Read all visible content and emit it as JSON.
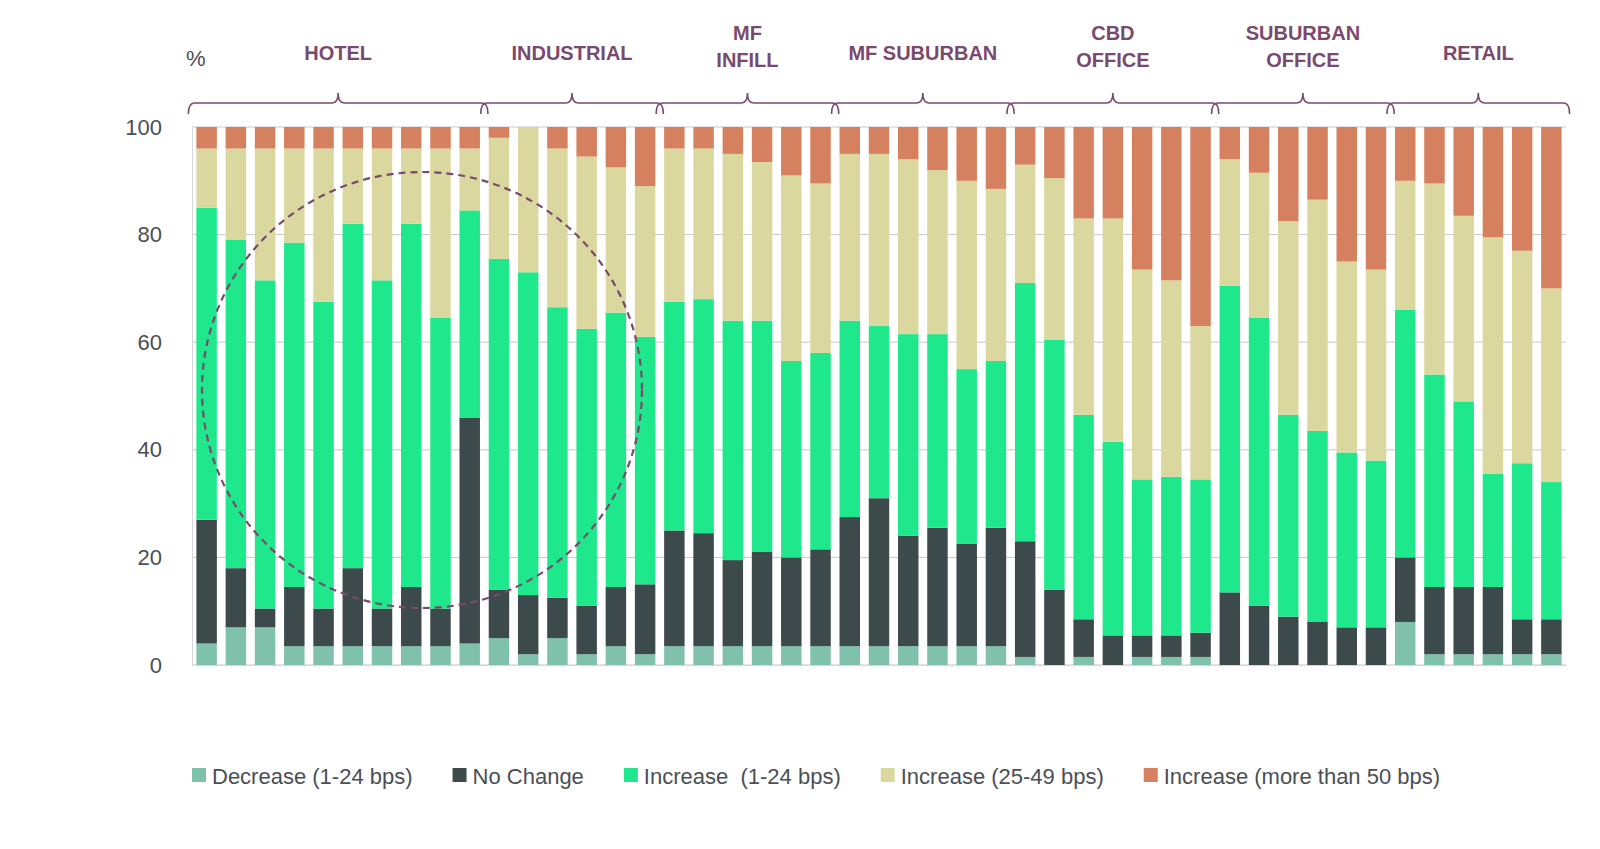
{
  "chart_data": {
    "type": "bar",
    "stacked": true,
    "grid": true,
    "legend": "bottom",
    "y_label": "%",
    "ylim": [
      0,
      100
    ],
    "yticks": [
      0,
      20,
      40,
      60,
      80,
      100
    ],
    "groups": [
      {
        "name": "HOTEL",
        "count": 10
      },
      {
        "name": "INDUSTRIAL",
        "count": 6
      },
      {
        "name": "MF\nINFILL",
        "count": 6
      },
      {
        "name": "MF SUBURBAN",
        "count": 6
      },
      {
        "name": "CBD\nOFFICE",
        "count": 7
      },
      {
        "name": "SUBURBAN\nOFFICE",
        "count": 6
      },
      {
        "name": "RETAIL",
        "count": 6
      }
    ],
    "categories": [
      null,
      null,
      null,
      null,
      null,
      null,
      null,
      null,
      null,
      null,
      null,
      null,
      null,
      null,
      null,
      null,
      null,
      null,
      null,
      null,
      null,
      null,
      null,
      null,
      null,
      null,
      null,
      null,
      null,
      null,
      null,
      null,
      null,
      null,
      null,
      null,
      null,
      null,
      null,
      null,
      null,
      null,
      null,
      null,
      null,
      null,
      null
    ],
    "series": [
      {
        "name": "Decrease (1-24 bps)",
        "color": "#80c1ac",
        "values": [
          4,
          7,
          7,
          3.5,
          3.5,
          3.5,
          3.5,
          3.5,
          3.5,
          4,
          5,
          2,
          5,
          2,
          3.5,
          2,
          3.5,
          3.5,
          3.5,
          3.5,
          3.5,
          3.5,
          3.5,
          3.5,
          3.5,
          3.5,
          3.5,
          3.5,
          1.5,
          0,
          1.5,
          0,
          1.5,
          1.5,
          1.5,
          0,
          0,
          0,
          0,
          0,
          0,
          8,
          2,
          2,
          2,
          2,
          2
        ]
      },
      {
        "name": "No Change",
        "color": "#3c4a4b",
        "values": [
          23,
          11,
          3.5,
          11,
          7,
          14.5,
          7,
          11,
          7,
          42,
          9,
          11,
          7.5,
          9,
          11,
          13,
          21.5,
          21,
          16,
          17.5,
          16.5,
          18,
          24,
          27.5,
          20.5,
          22,
          19,
          22,
          21.5,
          14,
          7,
          5.5,
          4,
          4,
          4.5,
          13.5,
          11,
          9,
          8,
          7,
          7,
          12,
          12.5,
          12.5,
          12.5,
          6.5,
          6.5
        ]
      },
      {
        "name": "Increase  (1-24 bps)",
        "color": "#1ee88b",
        "values": [
          58,
          61,
          61,
          64,
          57,
          64,
          61,
          67.5,
          54,
          38.5,
          61.5,
          60,
          54,
          51.5,
          51,
          46,
          42.5,
          43.5,
          44.5,
          43,
          36.5,
          36.5,
          36.5,
          32,
          37.5,
          36,
          32.5,
          31,
          48,
          46.5,
          38,
          36,
          29,
          29.5,
          28.5,
          57,
          53.5,
          37.5,
          35.5,
          32.5,
          31,
          46,
          39.5,
          34.5,
          21,
          29,
          25.5
        ]
      },
      {
        "name": "Increase (25-49 bps)",
        "color": "#dad89f",
        "values": [
          11,
          17,
          24.5,
          17.5,
          28.5,
          14,
          24.5,
          14,
          31.5,
          11.5,
          22.5,
          27,
          29.5,
          32,
          27,
          28,
          28.5,
          28,
          31,
          29.5,
          34.5,
          31.5,
          31,
          32,
          32.5,
          30.5,
          35,
          32,
          22,
          30,
          36.5,
          41.5,
          39,
          36.5,
          28.5,
          23.5,
          27,
          36,
          43,
          35.5,
          35.5,
          24,
          35.5,
          34.5,
          44,
          39.5,
          36
        ]
      },
      {
        "name": "Increase (more than 50 bps)",
        "color": "#d5805e",
        "values": [
          4,
          4,
          4,
          4,
          4,
          4,
          4,
          4,
          4,
          4,
          2,
          0,
          4,
          5.5,
          7.5,
          11,
          4,
          4,
          5,
          6.5,
          9,
          10.5,
          5,
          5,
          6,
          8,
          10,
          11.5,
          7,
          9.5,
          17,
          17,
          26.5,
          28.5,
          37,
          6,
          8.5,
          17.5,
          13.5,
          25,
          26.5,
          10,
          10.5,
          16.5,
          20.5,
          23,
          30
        ]
      }
    ]
  }
}
